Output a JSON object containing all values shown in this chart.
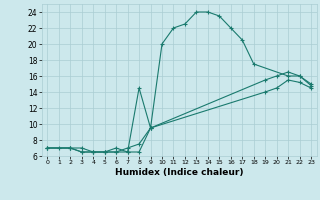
{
  "xlabel": "Humidex (Indice chaleur)",
  "bg_color": "#cce8ec",
  "grid_color": "#aacdd3",
  "line_color": "#1a7a6e",
  "xlim": [
    -0.5,
    23.5
  ],
  "ylim": [
    6,
    25
  ],
  "xticks": [
    0,
    1,
    2,
    3,
    4,
    5,
    6,
    7,
    8,
    9,
    10,
    11,
    12,
    13,
    14,
    15,
    16,
    17,
    18,
    19,
    20,
    21,
    22,
    23
  ],
  "yticks": [
    6,
    8,
    10,
    12,
    14,
    16,
    18,
    20,
    22,
    24
  ],
  "line1_x": [
    0,
    1,
    2,
    3,
    4,
    5,
    6,
    7,
    8,
    9,
    10,
    11,
    12,
    13,
    14,
    15,
    16,
    17,
    18,
    21,
    22,
    23
  ],
  "line1_y": [
    7,
    7,
    7,
    7,
    6.5,
    6.5,
    7,
    6.5,
    14.5,
    9.5,
    20,
    22,
    22.5,
    24,
    24,
    23.5,
    22,
    20.5,
    17.5,
    16,
    16,
    15
  ],
  "line2_x": [
    0,
    2,
    3,
    4,
    5,
    6,
    7,
    8,
    9,
    19,
    20,
    21,
    22,
    23
  ],
  "line2_y": [
    7,
    7,
    6.5,
    6.5,
    6.5,
    6.5,
    7,
    7.5,
    9.5,
    15.5,
    16,
    16.5,
    16,
    14.8
  ],
  "line3_x": [
    0,
    2,
    3,
    4,
    5,
    6,
    7,
    8,
    9,
    19,
    20,
    21,
    22,
    23
  ],
  "line3_y": [
    7,
    7,
    6.5,
    6.5,
    6.5,
    6.5,
    6.5,
    6.5,
    9.5,
    14,
    14.5,
    15.5,
    15.2,
    14.5
  ]
}
